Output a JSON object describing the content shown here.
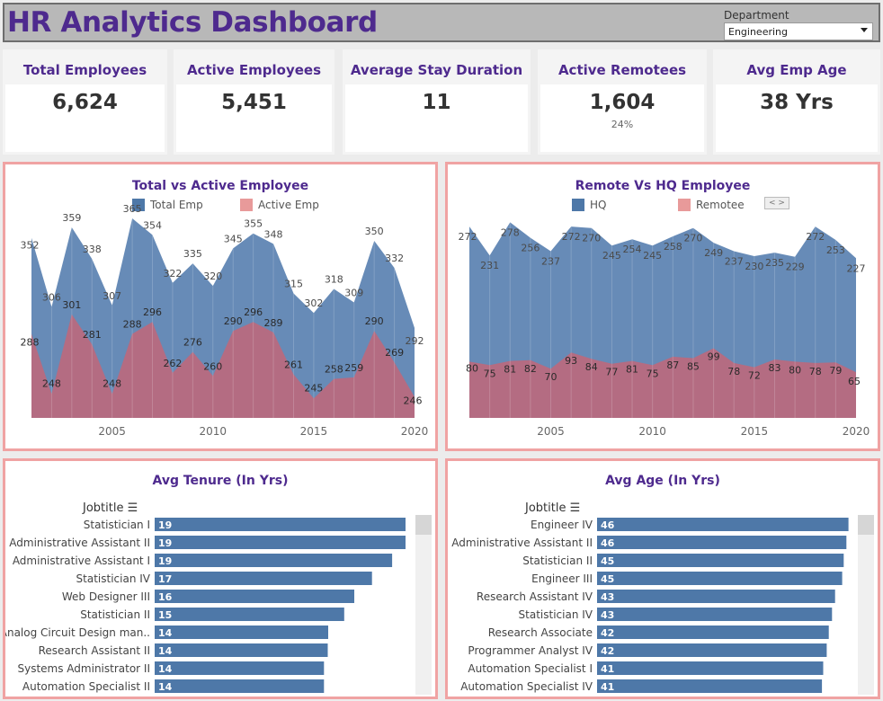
{
  "header": {
    "title": "HR Analytics Dashboard",
    "department_label": "Department",
    "department_value": "Engineering"
  },
  "kpis": [
    {
      "label": "Total Employees",
      "value": "6,624",
      "sub": ""
    },
    {
      "label": "Active Employees",
      "value": "5,451",
      "sub": ""
    },
    {
      "label": "Average Stay Duration",
      "value": "11",
      "sub": ""
    },
    {
      "label": "Active Remotees",
      "value": "1,604",
      "sub": "24%"
    },
    {
      "label": "Avg Emp Age",
      "value": "38 Yrs",
      "sub": ""
    }
  ],
  "colors": {
    "blue": "#4e78a8",
    "red": "#c9717d",
    "purple": "#4e2a8e",
    "panel_border": "#f0a3a3"
  },
  "nav_arrows": "< >",
  "chart_data": [
    {
      "type": "area",
      "title": "Total vs Active Employee",
      "x": [
        2001,
        2002,
        2003,
        2004,
        2005,
        2006,
        2007,
        2008,
        2009,
        2010,
        2011,
        2012,
        2013,
        2014,
        2015,
        2016,
        2017,
        2018,
        2019,
        2020
      ],
      "xticks": [
        2005,
        2010,
        2015,
        2020
      ],
      "ylim": [
        232,
        368
      ],
      "series": [
        {
          "name": "Total Emp",
          "color": "#4e78a8",
          "values": [
            352,
            306,
            359,
            338,
            307,
            365,
            354,
            322,
            335,
            320,
            345,
            355,
            348,
            315,
            302,
            318,
            309,
            350,
            332,
            292
          ]
        },
        {
          "name": "Active Emp",
          "color": "#c9717d",
          "values": [
            288,
            248,
            301,
            281,
            248,
            288,
            296,
            262,
            276,
            260,
            290,
            296,
            289,
            261,
            245,
            258,
            259,
            290,
            269,
            246
          ]
        }
      ]
    },
    {
      "type": "area",
      "title": "Remote Vs HQ Employee",
      "x": [
        2001,
        2002,
        2003,
        2004,
        2005,
        2006,
        2007,
        2008,
        2009,
        2010,
        2011,
        2012,
        2013,
        2014,
        2015,
        2016,
        2017,
        2018,
        2019,
        2020
      ],
      "xticks": [
        2005,
        2010,
        2015,
        2020
      ],
      "ylim": [
        0,
        290
      ],
      "series": [
        {
          "name": "HQ",
          "color": "#4e78a8",
          "values": [
            272,
            231,
            278,
            256,
            237,
            272,
            270,
            245,
            254,
            245,
            258,
            270,
            249,
            237,
            230,
            235,
            229,
            272,
            253,
            227
          ]
        },
        {
          "name": "Remotee",
          "color": "#c9717d",
          "values": [
            80,
            75,
            81,
            82,
            70,
            93,
            84,
            77,
            81,
            75,
            87,
            85,
            99,
            78,
            72,
            83,
            80,
            78,
            79,
            65
          ]
        }
      ]
    },
    {
      "type": "bar",
      "orientation": "horizontal",
      "title": "Avg Tenure (In Yrs)",
      "column_header": "Jobtitle",
      "xlim": [
        0,
        20
      ],
      "color": "#4e78a8",
      "categories": [
        "Statistician I",
        "Administrative Assistant II",
        "Administrative Assistant I",
        "Statistician IV",
        "Web Designer III",
        "Statistician II",
        "Analog Circuit Design man..",
        "Research Assistant II",
        "Systems Administrator II",
        "Automation Specialist II"
      ],
      "values": [
        19,
        19,
        19,
        17,
        16,
        15,
        14,
        14,
        14,
        14
      ],
      "bar_fraction": [
        0.993,
        0.993,
        0.94,
        0.86,
        0.79,
        0.75,
        0.687,
        0.685,
        0.67,
        0.67
      ]
    },
    {
      "type": "bar",
      "orientation": "horizontal",
      "title": "Avg Age (In Yrs)",
      "column_header": "Jobtitle",
      "xlim": [
        0,
        47
      ],
      "color": "#4e78a8",
      "categories": [
        "Engineer IV",
        "Administrative Assistant II",
        "Statistician II",
        "Engineer III",
        "Research Assistant IV",
        "Statistician IV",
        "Research Associate",
        "Programmer Analyst IV",
        "Automation Specialist I",
        "Automation Specialist IV"
      ],
      "values": [
        46,
        46,
        45,
        45,
        43,
        43,
        42,
        42,
        41,
        41
      ],
      "bar_fraction": [
        0.995,
        0.987,
        0.976,
        0.97,
        0.942,
        0.93,
        0.917,
        0.909,
        0.895,
        0.89
      ]
    }
  ]
}
